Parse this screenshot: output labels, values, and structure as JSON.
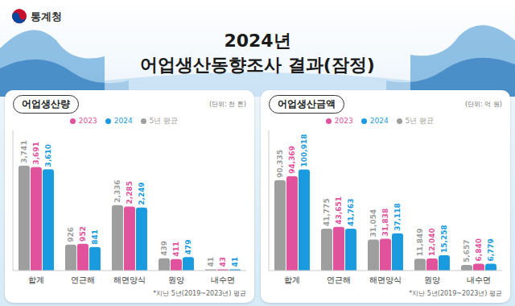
{
  "header": {
    "agency": "통계청",
    "title_lines": [
      "2024년",
      "어업생산동향조사 결과(잠정)"
    ]
  },
  "chart_data": [
    {
      "type": "bar",
      "title": "어업생산량",
      "subtitle": "(단위: 천 톤)",
      "annotation": "*지난 5년(2019~2023년) 평균",
      "categories": [
        "합계",
        "연근해",
        "해면양식",
        "원양",
        "내수면"
      ],
      "series": [
        {
          "name": "5년 평균",
          "color": "#9e9e9e",
          "values": [
            3741,
            926,
            2336,
            439,
            41
          ],
          "value_labels": [
            "3,741",
            "926",
            "2,336",
            "439",
            "41"
          ]
        },
        {
          "name": "2023",
          "color": "#e0529c",
          "values": [
            3691,
            952,
            2285,
            411,
            43
          ],
          "value_labels": [
            "3,691",
            "952",
            "2,285",
            "411",
            "43"
          ]
        },
        {
          "name": "2024",
          "color": "#1a9be0",
          "values": [
            3610,
            841,
            2249,
            479,
            41
          ],
          "value_labels": [
            "3,610",
            "841",
            "2,249",
            "479",
            "41"
          ]
        }
      ],
      "ylim": [
        0,
        5000
      ],
      "yticks": [],
      "tick_labels": "x",
      "data_labels": true,
      "legend": "top"
    },
    {
      "type": "bar",
      "title": "어업생산금액",
      "subtitle": "(단위: 억 원)",
      "annotation": "*지난 5년(2019~2023년) 평균",
      "categories": [
        "합계",
        "연근해",
        "해면양식",
        "원양",
        "내수면"
      ],
      "series": [
        {
          "name": "5년 평균",
          "color": "#9e9e9e",
          "values": [
            90335,
            41775,
            31054,
            11849,
            5657
          ],
          "value_labels": [
            "90,335",
            "41,775",
            "31,054",
            "11,849",
            "5,657"
          ]
        },
        {
          "name": "2023",
          "color": "#e0529c",
          "values": [
            94369,
            43651,
            31838,
            12040,
            6840
          ],
          "value_labels": [
            "94,369",
            "43,651",
            "31,838",
            "12,040",
            "6,840"
          ]
        },
        {
          "name": "2024",
          "color": "#1a9be0",
          "values": [
            100918,
            41763,
            37118,
            15258,
            6779
          ],
          "value_labels": [
            "100,918",
            "41,763",
            "37,118",
            "15,258",
            "6,779"
          ]
        }
      ],
      "ylim": [
        0,
        140000
      ],
      "yticks": [],
      "tick_labels": "x",
      "data_labels": true,
      "legend": "top"
    }
  ]
}
